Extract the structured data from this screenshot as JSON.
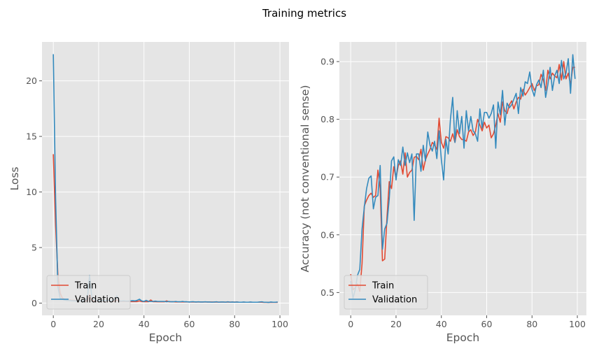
{
  "figure_title": "Training metrics",
  "chart_data": [
    {
      "type": "line",
      "title": "",
      "xlabel": "Epoch",
      "ylabel": "Loss",
      "xlim": [
        -5,
        104
      ],
      "ylim": [
        -1.1,
        23.5
      ],
      "xticks": [
        0,
        20,
        40,
        60,
        80,
        100
      ],
      "yticks": [
        0,
        5,
        10,
        15,
        20
      ],
      "grid": true,
      "legend_position": "lower-left",
      "x": [
        0,
        1,
        2,
        3,
        4,
        5,
        6,
        7,
        8,
        9,
        10,
        11,
        12,
        13,
        14,
        15,
        16,
        17,
        18,
        19,
        20,
        21,
        22,
        23,
        24,
        25,
        26,
        27,
        28,
        29,
        30,
        31,
        32,
        33,
        34,
        35,
        36,
        37,
        38,
        39,
        40,
        41,
        42,
        43,
        44,
        45,
        46,
        47,
        48,
        49,
        50,
        51,
        52,
        53,
        54,
        55,
        56,
        57,
        58,
        59,
        60,
        61,
        62,
        63,
        64,
        65,
        66,
        67,
        68,
        69,
        70,
        71,
        72,
        73,
        74,
        75,
        76,
        77,
        78,
        79,
        80,
        81,
        82,
        83,
        84,
        85,
        86,
        87,
        88,
        89,
        90,
        91,
        92,
        93,
        94,
        95,
        96,
        97,
        98,
        99
      ],
      "series": [
        {
          "name": "Train",
          "color": "#E24A33",
          "values": [
            13.4,
            7.0,
            2.6,
            0.9,
            0.45,
            0.35,
            0.3,
            0.28,
            0.26,
            0.25,
            0.24,
            0.23,
            0.22,
            0.22,
            0.21,
            0.2,
            0.75,
            0.3,
            0.2,
            0.19,
            0.19,
            0.18,
            0.18,
            0.17,
            0.2,
            0.17,
            0.16,
            0.16,
            0.3,
            0.16,
            0.15,
            0.15,
            0.15,
            0.15,
            0.14,
            0.14,
            0.14,
            0.14,
            0.2,
            0.14,
            0.13,
            0.13,
            0.13,
            0.28,
            0.13,
            0.13,
            0.12,
            0.12,
            0.12,
            0.12,
            0.2,
            0.12,
            0.12,
            0.12,
            0.11,
            0.11,
            0.11,
            0.11,
            0.11,
            0.11,
            0.11,
            0.1,
            0.1,
            0.1,
            0.1,
            0.1,
            0.1,
            0.1,
            0.1,
            0.1,
            0.1,
            0.09,
            0.09,
            0.09,
            0.09,
            0.09,
            0.09,
            0.09,
            0.09,
            0.09,
            0.09,
            0.09,
            0.08,
            0.08,
            0.08,
            0.08,
            0.08,
            0.08,
            0.08,
            0.08,
            0.08,
            0.08,
            0.08,
            0.07,
            0.07,
            0.07,
            0.07,
            0.07,
            0.07,
            0.07
          ]
        },
        {
          "name": "Validation",
          "color": "#348ABD",
          "values": [
            22.4,
            9.5,
            1.5,
            0.45,
            0.35,
            0.28,
            0.25,
            0.24,
            0.22,
            0.21,
            0.2,
            0.2,
            0.22,
            0.2,
            0.25,
            0.4,
            2.5,
            0.5,
            0.3,
            0.25,
            0.2,
            0.2,
            0.22,
            0.2,
            0.25,
            0.2,
            0.22,
            0.3,
            0.65,
            0.2,
            0.18,
            0.2,
            0.18,
            0.18,
            0.2,
            0.22,
            0.2,
            0.25,
            0.35,
            0.2,
            0.15,
            0.25,
            0.15,
            0.15,
            0.15,
            0.18,
            0.15,
            0.15,
            0.15,
            0.15,
            0.12,
            0.15,
            0.12,
            0.12,
            0.15,
            0.12,
            0.12,
            0.15,
            0.12,
            0.12,
            0.1,
            0.12,
            0.12,
            0.1,
            0.12,
            0.1,
            0.1,
            0.12,
            0.1,
            0.1,
            0.08,
            0.1,
            0.12,
            0.08,
            0.1,
            0.1,
            0.08,
            0.12,
            0.08,
            0.1,
            0.08,
            0.1,
            0.08,
            0.08,
            0.1,
            0.08,
            0.08,
            0.1,
            0.08,
            0.08,
            0.08,
            0.1,
            0.12,
            0.08,
            0.08,
            0.06,
            0.1,
            0.08,
            0.08,
            0.1
          ]
        }
      ]
    },
    {
      "type": "line",
      "title": "",
      "xlabel": "Epoch",
      "ylabel": "Accuracy (not conventional sense)",
      "xlim": [
        -5,
        104
      ],
      "ylim": [
        0.4605,
        0.934
      ],
      "xticks": [
        0,
        20,
        40,
        60,
        80,
        100
      ],
      "yticks": [
        0.5,
        0.6,
        0.7,
        0.8,
        0.9
      ],
      "grid": true,
      "legend_position": "lower-left",
      "x": [
        0,
        1,
        2,
        3,
        4,
        5,
        6,
        7,
        8,
        9,
        10,
        11,
        12,
        13,
        14,
        15,
        16,
        17,
        18,
        19,
        20,
        21,
        22,
        23,
        24,
        25,
        26,
        27,
        28,
        29,
        30,
        31,
        32,
        33,
        34,
        35,
        36,
        37,
        38,
        39,
        40,
        41,
        42,
        43,
        44,
        45,
        46,
        47,
        48,
        49,
        50,
        51,
        52,
        53,
        54,
        55,
        56,
        57,
        58,
        59,
        60,
        61,
        62,
        63,
        64,
        65,
        66,
        67,
        68,
        69,
        70,
        71,
        72,
        73,
        74,
        75,
        76,
        77,
        78,
        79,
        80,
        81,
        82,
        83,
        84,
        85,
        86,
        87,
        88,
        89,
        90,
        91,
        92,
        93,
        94,
        95,
        96,
        97,
        98,
        99
      ],
      "series": [
        {
          "name": "Train",
          "color": "#E24A33",
          "values": [
            0.532,
            0.505,
            0.508,
            0.515,
            0.502,
            0.55,
            0.65,
            0.66,
            0.668,
            0.672,
            0.665,
            0.668,
            0.712,
            0.68,
            0.555,
            0.558,
            0.63,
            0.692,
            0.68,
            0.718,
            0.698,
            0.72,
            0.728,
            0.705,
            0.742,
            0.7,
            0.708,
            0.712,
            0.734,
            0.736,
            0.73,
            0.748,
            0.712,
            0.73,
            0.74,
            0.748,
            0.76,
            0.755,
            0.748,
            0.802,
            0.76,
            0.75,
            0.77,
            0.768,
            0.762,
            0.775,
            0.76,
            0.782,
            0.77,
            0.765,
            0.765,
            0.762,
            0.778,
            0.782,
            0.772,
            0.778,
            0.8,
            0.79,
            0.78,
            0.795,
            0.785,
            0.79,
            0.768,
            0.775,
            0.79,
            0.81,
            0.795,
            0.83,
            0.815,
            0.81,
            0.825,
            0.832,
            0.818,
            0.83,
            0.838,
            0.835,
            0.852,
            0.842,
            0.848,
            0.855,
            0.862,
            0.85,
            0.858,
            0.86,
            0.878,
            0.868,
            0.85,
            0.885,
            0.87,
            0.88,
            0.875,
            0.872,
            0.895,
            0.868,
            0.9,
            0.87,
            0.88,
            0.86,
            0.89,
            0.89
          ]
        },
        {
          "name": "Validation",
          "color": "#348ABD",
          "values": [
            0.52,
            0.49,
            0.505,
            0.53,
            0.54,
            0.61,
            0.648,
            0.68,
            0.698,
            0.702,
            0.645,
            0.665,
            0.668,
            0.72,
            0.575,
            0.61,
            0.62,
            0.662,
            0.728,
            0.735,
            0.695,
            0.73,
            0.72,
            0.752,
            0.72,
            0.742,
            0.725,
            0.74,
            0.625,
            0.74,
            0.74,
            0.71,
            0.755,
            0.728,
            0.778,
            0.755,
            0.745,
            0.762,
            0.732,
            0.78,
            0.73,
            0.695,
            0.765,
            0.74,
            0.8,
            0.838,
            0.76,
            0.815,
            0.775,
            0.805,
            0.75,
            0.815,
            0.78,
            0.805,
            0.78,
            0.775,
            0.762,
            0.818,
            0.785,
            0.812,
            0.812,
            0.802,
            0.81,
            0.825,
            0.75,
            0.83,
            0.808,
            0.85,
            0.79,
            0.828,
            0.82,
            0.825,
            0.835,
            0.845,
            0.81,
            0.855,
            0.84,
            0.865,
            0.862,
            0.882,
            0.852,
            0.84,
            0.86,
            0.868,
            0.855,
            0.885,
            0.838,
            0.86,
            0.89,
            0.85,
            0.875,
            0.885,
            0.862,
            0.902,
            0.87,
            0.88,
            0.905,
            0.845,
            0.912,
            0.87
          ]
        }
      ]
    }
  ]
}
